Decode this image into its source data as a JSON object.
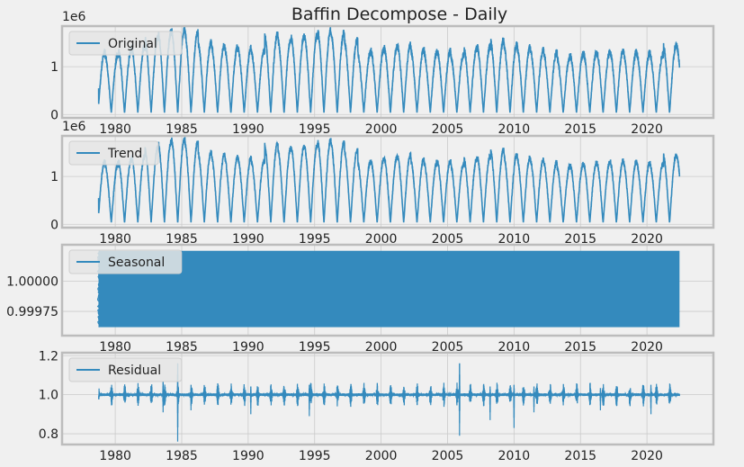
{
  "figure": {
    "title": "Baffin Decompose - Daily",
    "background": "#f0f0f0",
    "line_color": "#348abd",
    "spine_color": "#bcbcbc",
    "grid_color": "#cbcbcb"
  },
  "chart_data": [
    {
      "type": "line",
      "panel": "original",
      "legend": "Original",
      "legend_position": "upper-left",
      "grid": true,
      "x_range": [
        1976.0,
        2025.0
      ],
      "y_range": [
        -0.07,
        1.85
      ],
      "y_offset_label": "1e6",
      "xticks": [
        1980,
        1985,
        1990,
        1995,
        2000,
        2005,
        2010,
        2015,
        2020
      ],
      "yticks": [
        {
          "v": 0,
          "label": "0"
        },
        {
          "v": 1,
          "label": "1"
        }
      ],
      "series": {
        "start_year": 1978.75,
        "end_year": 2022.45,
        "start_value": 0.55,
        "end_value": 0.98,
        "annual_peaks": [
          1.3,
          1.25,
          1.35,
          1.42,
          1.6,
          1.72,
          1.78,
          1.72,
          1.5,
          1.45,
          1.4,
          1.38,
          1.32,
          1.68,
          1.58,
          1.62,
          1.65,
          1.75,
          1.7,
          1.55,
          1.3,
          1.35,
          1.4,
          1.45,
          1.35,
          1.3,
          1.32,
          1.25,
          1.38,
          1.42,
          1.55,
          1.45,
          1.4,
          1.35,
          1.3,
          1.2,
          1.25,
          1.28,
          1.3,
          1.32,
          1.3,
          1.28,
          1.25,
          1.45
        ],
        "annual_min": 0.04,
        "units_scale": 1000000
      }
    },
    {
      "type": "line",
      "panel": "trend",
      "legend": "Trend",
      "legend_position": "upper-left",
      "grid": true,
      "x_range": [
        1976.0,
        2025.0
      ],
      "y_range": [
        -0.07,
        1.85
      ],
      "y_offset_label": "1e6",
      "xticks": [
        1980,
        1985,
        1990,
        1995,
        2000,
        2005,
        2010,
        2015,
        2020
      ],
      "yticks": [
        {
          "v": 0,
          "label": "0"
        },
        {
          "v": 1,
          "label": "1"
        }
      ],
      "series": {
        "start_year": 1978.75,
        "end_year": 2022.45,
        "start_value": 0.55,
        "end_value": 1.0,
        "annual_min": 0.04,
        "units_scale": 1000000,
        "same_peaks_as": "original"
      }
    },
    {
      "type": "line",
      "panel": "seasonal",
      "legend": "Seasonal",
      "legend_position": "upper-left",
      "grid": true,
      "x_range": [
        1976.0,
        2025.0
      ],
      "y_range": [
        0.99955,
        1.0003
      ],
      "xticks": [
        1980,
        1985,
        1990,
        1995,
        2000,
        2005,
        2010,
        2015,
        2020
      ],
      "yticks": [
        {
          "v": 0.99975,
          "label": "0.99975"
        },
        {
          "v": 1.0,
          "label": "1.00000"
        }
      ],
      "series": {
        "start_year": 1978.75,
        "end_year": 2022.45,
        "min": 0.99962,
        "max": 1.00025,
        "note_visible": "dense daily oscillation filling band"
      }
    },
    {
      "type": "line",
      "panel": "residual",
      "legend": "Residual",
      "legend_position": "upper-left",
      "grid": true,
      "x_range": [
        1976.0,
        2025.0
      ],
      "y_range": [
        0.745,
        1.215
      ],
      "xticks": [
        1980,
        1985,
        1990,
        1995,
        2000,
        2005,
        2010,
        2015,
        2020
      ],
      "yticks": [
        {
          "v": 0.8,
          "label": "0.8"
        },
        {
          "v": 1.0,
          "label": "1.0"
        },
        {
          "v": 1.2,
          "label": "1.2"
        }
      ],
      "series": {
        "start_year": 1978.75,
        "end_year": 2022.45,
        "baseline": 1.0,
        "typical_amplitude": 0.02,
        "spikes": [
          {
            "x": 1984.7,
            "hi": 1.19,
            "lo": 0.76
          },
          {
            "x": 1983.6,
            "hi": 1.08,
            "lo": 0.91
          },
          {
            "x": 1985.7,
            "hi": 1.06,
            "lo": 0.92
          },
          {
            "x": 2005.9,
            "hi": 1.19,
            "lo": 0.79
          },
          {
            "x": 2010.0,
            "hi": 1.06,
            "lo": 0.83
          },
          {
            "x": 1990.2,
            "hi": 1.05,
            "lo": 0.9
          },
          {
            "x": 1994.6,
            "hi": 1.06,
            "lo": 0.89
          },
          {
            "x": 2008.2,
            "hi": 1.05,
            "lo": 0.87
          },
          {
            "x": 2011.5,
            "hi": 1.05,
            "lo": 0.91
          },
          {
            "x": 2016.5,
            "hi": 1.04,
            "lo": 0.92
          },
          {
            "x": 2020.3,
            "hi": 1.06,
            "lo": 0.9
          }
        ]
      }
    }
  ]
}
